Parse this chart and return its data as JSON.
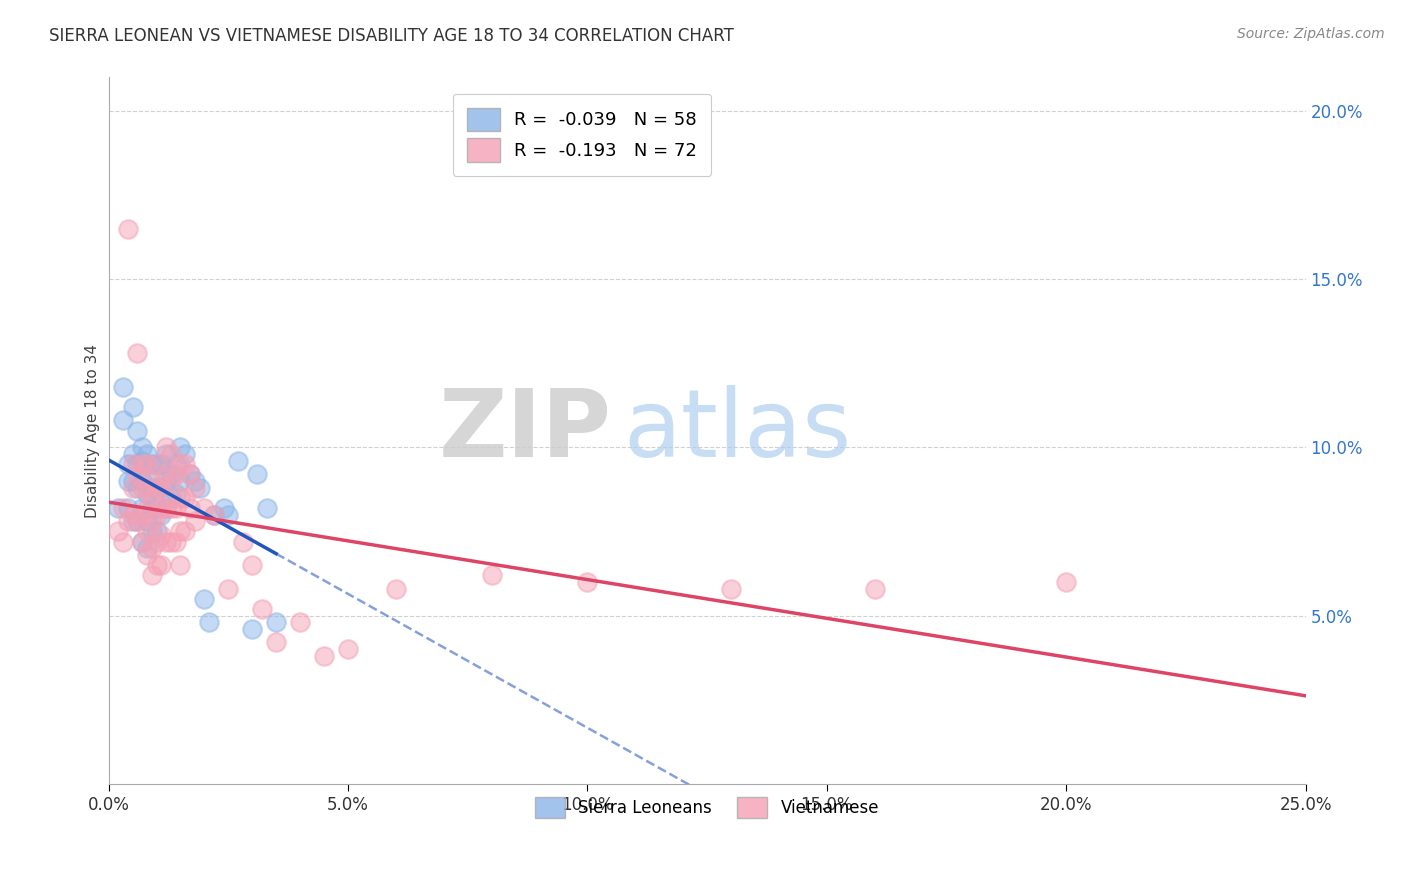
{
  "title": "SIERRA LEONEAN VS VIETNAMESE DISABILITY AGE 18 TO 34 CORRELATION CHART",
  "source": "Source: ZipAtlas.com",
  "ylabel": "Disability Age 18 to 34",
  "xlim": [
    0.0,
    0.25
  ],
  "ylim": [
    0.0,
    0.21
  ],
  "xticks": [
    0.0,
    0.05,
    0.1,
    0.15,
    0.2,
    0.25
  ],
  "yticks": [
    0.05,
    0.1,
    0.15,
    0.2
  ],
  "sl_color": "#8ab4e8",
  "vn_color": "#f4a0b4",
  "sl_line_color": "#2255bb",
  "vn_line_color": "#dd4466",
  "sl_R": -0.039,
  "sl_N": 58,
  "vn_R": -0.193,
  "vn_N": 72,
  "watermark_zip": "ZIP",
  "watermark_atlas": "atlas",
  "sl_scatter_x": [
    0.002,
    0.003,
    0.003,
    0.004,
    0.004,
    0.004,
    0.005,
    0.005,
    0.005,
    0.005,
    0.006,
    0.006,
    0.006,
    0.006,
    0.007,
    0.007,
    0.007,
    0.007,
    0.007,
    0.008,
    0.008,
    0.008,
    0.008,
    0.008,
    0.009,
    0.009,
    0.009,
    0.009,
    0.01,
    0.01,
    0.01,
    0.01,
    0.011,
    0.011,
    0.011,
    0.012,
    0.012,
    0.012,
    0.013,
    0.013,
    0.014,
    0.014,
    0.015,
    0.015,
    0.016,
    0.017,
    0.018,
    0.019,
    0.02,
    0.021,
    0.022,
    0.024,
    0.025,
    0.027,
    0.03,
    0.031,
    0.033,
    0.035
  ],
  "sl_scatter_y": [
    0.082,
    0.118,
    0.108,
    0.095,
    0.09,
    0.082,
    0.112,
    0.098,
    0.09,
    0.078,
    0.105,
    0.095,
    0.088,
    0.078,
    0.1,
    0.096,
    0.09,
    0.082,
    0.072,
    0.098,
    0.092,
    0.086,
    0.078,
    0.07,
    0.095,
    0.088,
    0.082,
    0.075,
    0.095,
    0.088,
    0.082,
    0.075,
    0.095,
    0.088,
    0.08,
    0.098,
    0.09,
    0.082,
    0.092,
    0.085,
    0.095,
    0.086,
    0.1,
    0.09,
    0.098,
    0.092,
    0.09,
    0.088,
    0.055,
    0.048,
    0.08,
    0.082,
    0.08,
    0.096,
    0.046,
    0.092,
    0.082,
    0.048
  ],
  "vn_scatter_x": [
    0.002,
    0.003,
    0.003,
    0.004,
    0.004,
    0.005,
    0.005,
    0.005,
    0.006,
    0.006,
    0.006,
    0.007,
    0.007,
    0.007,
    0.007,
    0.008,
    0.008,
    0.008,
    0.008,
    0.008,
    0.009,
    0.009,
    0.009,
    0.009,
    0.009,
    0.01,
    0.01,
    0.01,
    0.01,
    0.01,
    0.011,
    0.011,
    0.011,
    0.011,
    0.012,
    0.012,
    0.012,
    0.012,
    0.013,
    0.013,
    0.013,
    0.013,
    0.014,
    0.014,
    0.014,
    0.015,
    0.015,
    0.015,
    0.015,
    0.016,
    0.016,
    0.016,
    0.017,
    0.017,
    0.018,
    0.018,
    0.02,
    0.022,
    0.025,
    0.028,
    0.03,
    0.032,
    0.035,
    0.04,
    0.045,
    0.05,
    0.06,
    0.08,
    0.1,
    0.13,
    0.16,
    0.2
  ],
  "vn_scatter_y": [
    0.075,
    0.082,
    0.072,
    0.165,
    0.078,
    0.095,
    0.088,
    0.08,
    0.128,
    0.092,
    0.078,
    0.095,
    0.088,
    0.08,
    0.072,
    0.095,
    0.088,
    0.082,
    0.075,
    0.068,
    0.09,
    0.085,
    0.078,
    0.07,
    0.062,
    0.095,
    0.088,
    0.08,
    0.072,
    0.065,
    0.088,
    0.082,
    0.074,
    0.065,
    0.1,
    0.092,
    0.082,
    0.072,
    0.098,
    0.09,
    0.082,
    0.072,
    0.092,
    0.082,
    0.072,
    0.095,
    0.085,
    0.075,
    0.065,
    0.095,
    0.085,
    0.075,
    0.092,
    0.082,
    0.088,
    0.078,
    0.082,
    0.08,
    0.058,
    0.072,
    0.065,
    0.052,
    0.042,
    0.048,
    0.038,
    0.04,
    0.058,
    0.062,
    0.06,
    0.058,
    0.058,
    0.06
  ]
}
